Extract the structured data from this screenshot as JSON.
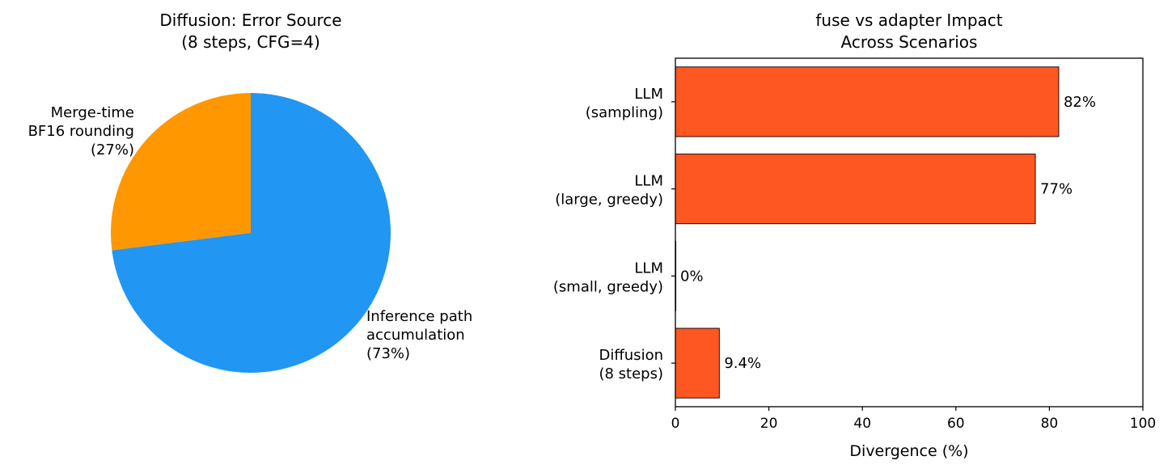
{
  "chart_data": [
    {
      "type": "pie",
      "title_lines": [
        "Diffusion: Error Source",
        "(8 steps, CFG=4)"
      ],
      "slices": [
        {
          "label_lines": [
            "Merge-time",
            "BF16 rounding",
            "(27%)"
          ],
          "value": 27,
          "color": "#FF9800"
        },
        {
          "label_lines": [
            "Inference path",
            "accumulation",
            "(73%)"
          ],
          "value": 73,
          "color": "#2196F3"
        }
      ]
    },
    {
      "type": "bar",
      "orientation": "horizontal",
      "title_lines": [
        "fuse vs adapter Impact",
        "Across Scenarios"
      ],
      "categories": [
        {
          "lines": [
            "LLM",
            "(sampling)"
          ],
          "value": 82,
          "value_label": "82%"
        },
        {
          "lines": [
            "LLM",
            "(large, greedy)"
          ],
          "value": 77,
          "value_label": "77%"
        },
        {
          "lines": [
            "LLM",
            "(small, greedy)"
          ],
          "value": 0,
          "value_label": "0%"
        },
        {
          "lines": [
            "Diffusion",
            "(8 steps)"
          ],
          "value": 9.4,
          "value_label": "9.4%"
        }
      ],
      "xlabel": "Divergence (%)",
      "xlim": [
        0,
        100
      ],
      "xticks": [
        "0",
        "20",
        "40",
        "60",
        "80",
        "100"
      ],
      "bar_color": "#FF5722",
      "grid": false
    }
  ]
}
